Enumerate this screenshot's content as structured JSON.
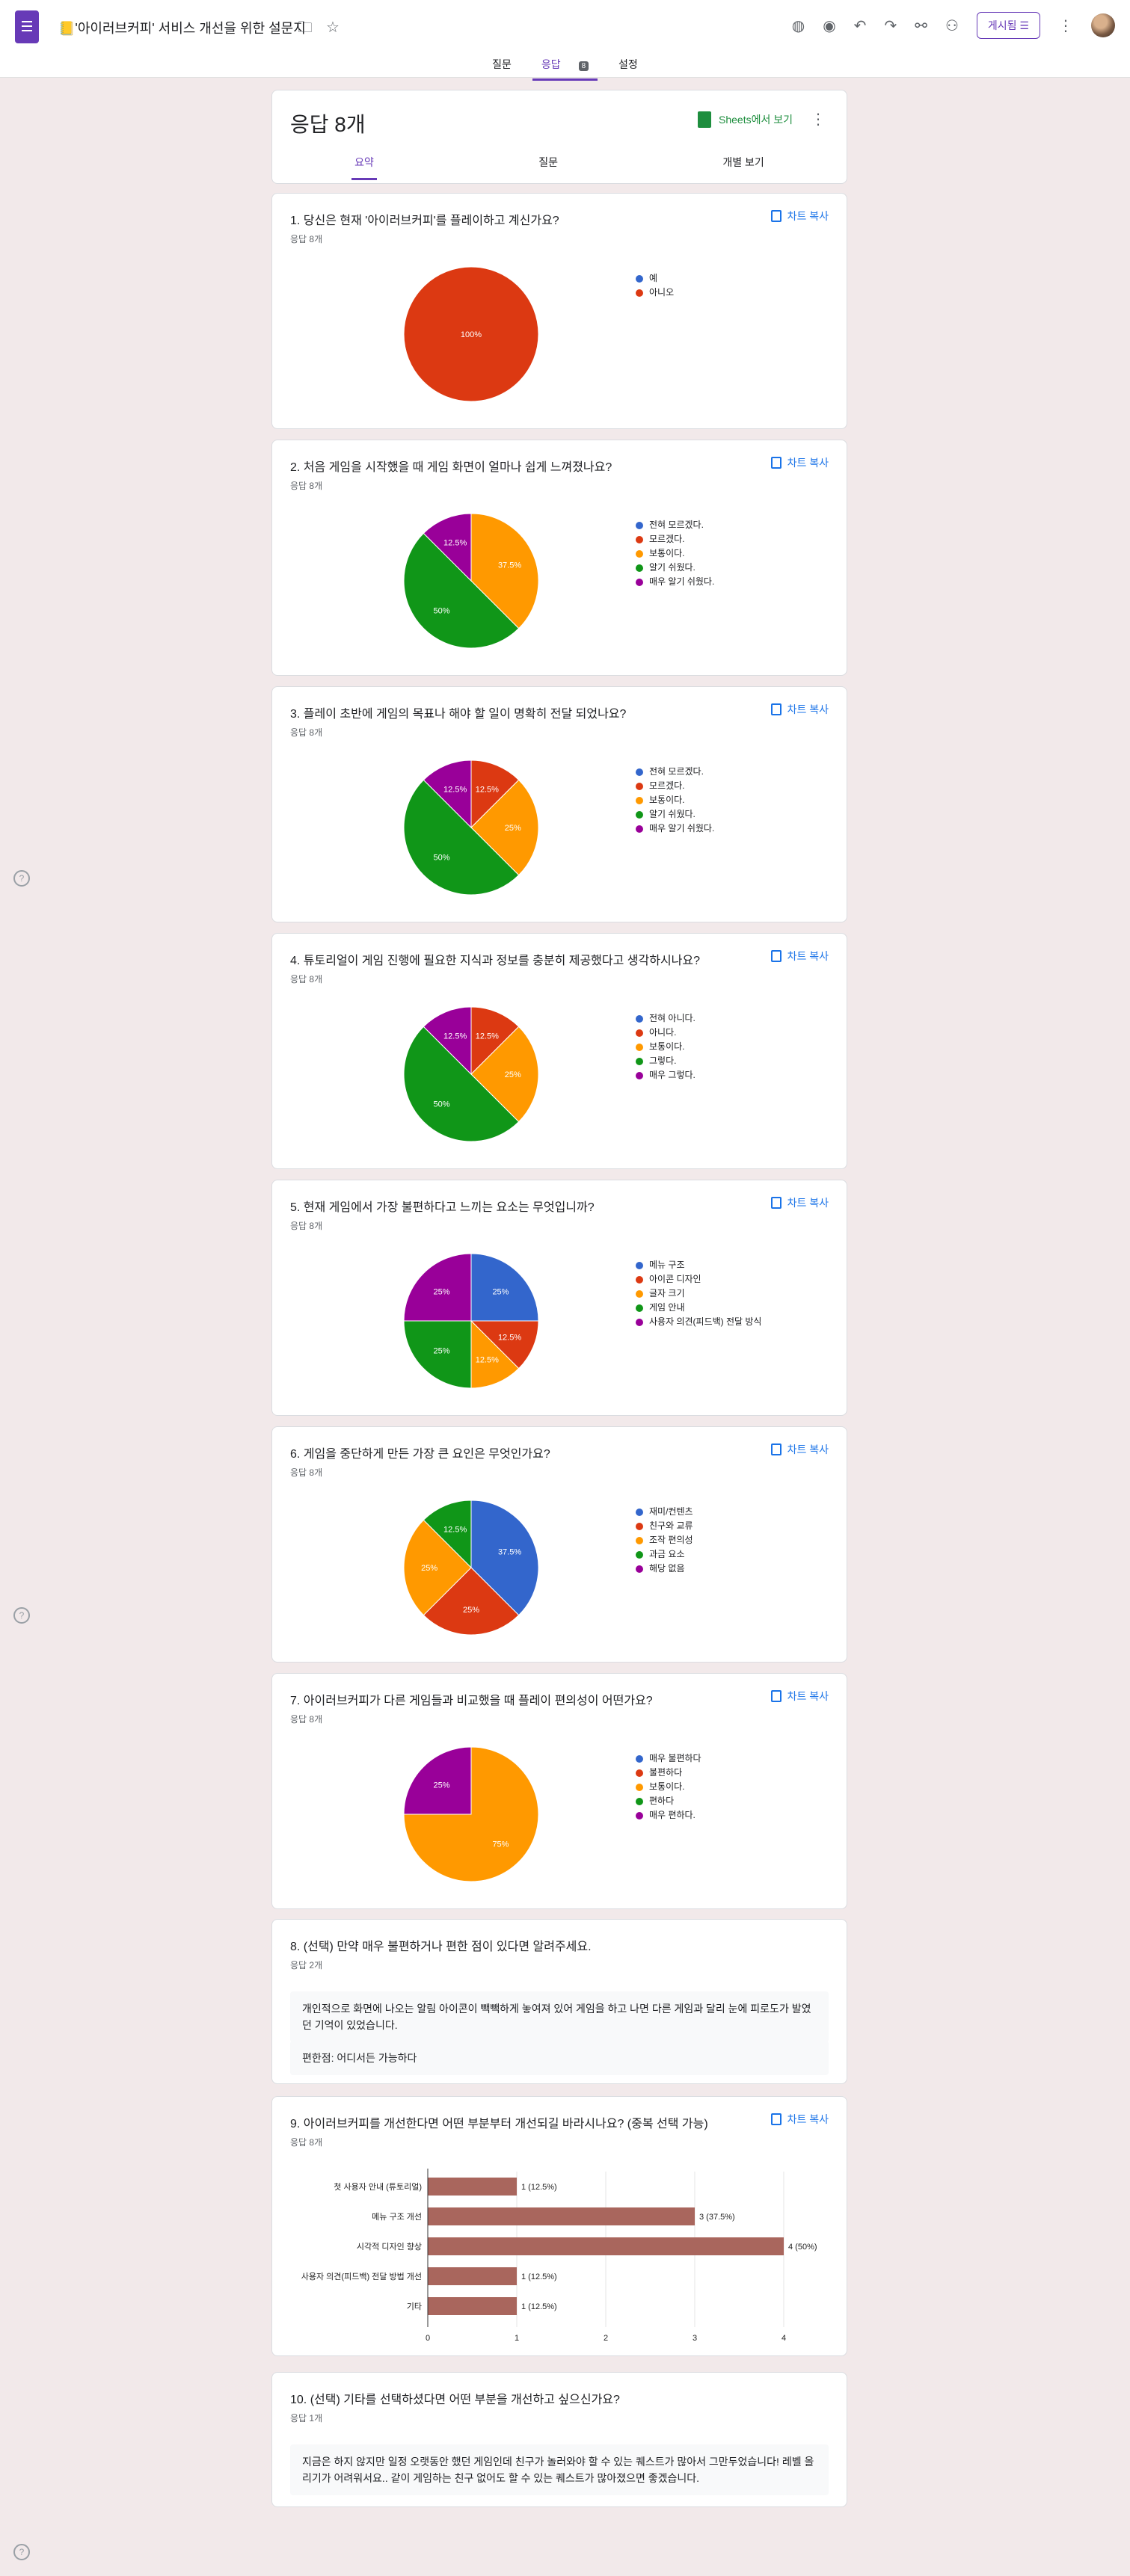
{
  "header": {
    "doc_title": "📒'아이러브커피' 서비스 개선을 위한 설문지",
    "publish_label": "게시됨",
    "tabs": [
      "질문",
      "응답",
      "설정"
    ],
    "response_badge": "8"
  },
  "summary": {
    "title": "응답 8개",
    "sheets_label": "Sheets에서 보기",
    "subtabs": [
      "요약",
      "질문",
      "개별 보기"
    ]
  },
  "copy_label": "차트 복사",
  "colors": {
    "blue": "#3366cc",
    "red": "#dc3912",
    "orange": "#ff9900",
    "green": "#109618",
    "purple": "#990099",
    "accent": "#673ab7",
    "bar": "#a9665d"
  },
  "questions": [
    {
      "title": "1. 당신은 현재 '아이러브커피'를 플레이하고 계신가요?",
      "count": "응답 8개",
      "chart_data": {
        "type": "pie",
        "labels": [
          "예",
          "아니오"
        ],
        "values": [
          0,
          100
        ],
        "slice_labels": [
          "",
          "100%"
        ]
      }
    },
    {
      "title": "2. 처음 게임을 시작했을 때 게임 화면이 얼마나 쉽게 느껴졌나요?",
      "count": "응답 8개",
      "chart_data": {
        "type": "pie",
        "labels": [
          "전혀 모르겠다.",
          "모르겠다.",
          "보통이다.",
          "알기 쉬웠다.",
          "매우 알기 쉬웠다."
        ],
        "values": [
          0,
          0,
          37.5,
          50,
          12.5
        ],
        "slice_labels": [
          "",
          "",
          "37.5%",
          "50%",
          "12.5%"
        ]
      }
    },
    {
      "title": "3. 플레이 초반에 게임의 목표나 해야 할 일이 명확히 전달 되었나요?",
      "count": "응답 8개",
      "chart_data": {
        "type": "pie",
        "labels": [
          "전혀 모르겠다.",
          "모르겠다.",
          "보통이다.",
          "알기 쉬웠다.",
          "매우 알기 쉬웠다."
        ],
        "values": [
          0,
          12.5,
          25,
          50,
          12.5
        ],
        "slice_labels": [
          "",
          "12.5%",
          "25%",
          "50%",
          "12.5%"
        ]
      }
    },
    {
      "title": "4. 튜토리얼이 게임 진행에 필요한 지식과 정보를 충분히 제공했다고 생각하시나요?",
      "count": "응답 8개",
      "chart_data": {
        "type": "pie",
        "labels": [
          "전혀 아니다.",
          "아니다.",
          "보통이다.",
          "그렇다.",
          "매우 그렇다."
        ],
        "values": [
          0,
          12.5,
          25,
          50,
          12.5
        ],
        "slice_labels": [
          "",
          "12.5%",
          "25%",
          "50%",
          "12.5%"
        ]
      }
    },
    {
      "title": "5. 현재 게임에서 가장 불편하다고 느끼는 요소는 무엇입니까?",
      "count": "응답 8개",
      "chart_data": {
        "type": "pie",
        "labels": [
          "메뉴 구조",
          "아이콘 디자인",
          "글자 크기",
          "게임 안내",
          "사용자 의견(피드백) 전달 방식"
        ],
        "values": [
          25,
          12.5,
          12.5,
          25,
          25
        ],
        "slice_labels": [
          "25%",
          "12.5%",
          "12.5%",
          "25%",
          "25%"
        ]
      }
    },
    {
      "title": "6. 게임을 중단하게 만든 가장 큰 요인은 무엇인가요?",
      "count": "응답 8개",
      "chart_data": {
        "type": "pie",
        "labels": [
          "재미/컨텐츠",
          "친구와 교류",
          "조작 편의성",
          "과금 요소",
          "해당 없음"
        ],
        "values": [
          37.5,
          25,
          25,
          12.5,
          0
        ],
        "slice_labels": [
          "37.5%",
          "25%",
          "25%",
          "12.5%",
          ""
        ]
      }
    },
    {
      "title": "7. 아이러브커피가 다른 게임들과 비교했을 때 플레이 편의성이 어떤가요?",
      "count": "응답 8개",
      "chart_data": {
        "type": "pie",
        "labels": [
          "매우 불편하다",
          "불편하다",
          "보통이다.",
          "편하다",
          "매우 편하다."
        ],
        "values": [
          0,
          0,
          75,
          0,
          25
        ],
        "slice_labels": [
          "",
          "",
          "75%",
          "",
          "25%"
        ]
      }
    }
  ],
  "q8": {
    "title": "8. (선택) 만약 매우 불편하거나 편한 점이 있다면 알려주세요.",
    "count": "응답 2개",
    "answers": [
      "개인적으로 화면에 나오는 알림 아이콘이 빽빽하게 놓여져 있어 게임을 하고 나면 다른 게임과 달리 눈에 피로도가 발였던 기억이 있었습니다.",
      "편한점: 어디서든 가능하다"
    ]
  },
  "q9": {
    "title": "9. 아이러브커피를 개선한다면 어떤 부분부터 개선되길 바라시나요? (중복 선택 가능)",
    "count": "응답 8개",
    "chart_data": {
      "type": "bar",
      "orientation": "horizontal",
      "categories": [
        "첫 사용자 안내 (튜토리얼)",
        "메뉴 구조 개선",
        "시각적 디자인 향상",
        "사용자 의견(피드백) 전달 방법 개선",
        "기타"
      ],
      "values": [
        1,
        3,
        4,
        1,
        1
      ],
      "data_labels": [
        "1 (12.5%)",
        "3 (37.5%)",
        "4 (50%)",
        "1 (12.5%)",
        "1 (12.5%)"
      ],
      "xlim": [
        0,
        4
      ],
      "xticks": [
        "0",
        "1",
        "2",
        "3",
        "4"
      ]
    }
  },
  "q10": {
    "title": "10. (선택) 기타를 선택하셨다면 어떤 부분을 개선하고 싶으신가요?",
    "count": "응답 1개",
    "answer": "지금은 하지 않지만 일정 오랫동안 했던 게임인데 친구가 놀러와야 할 수 있는 퀘스트가 많아서 그만두었습니다! 레벨 올리기가 어려워서요.. 같이 게임하는 친구 없어도 할 수 있는 퀘스트가 많아졌으면 좋겠습니다."
  }
}
